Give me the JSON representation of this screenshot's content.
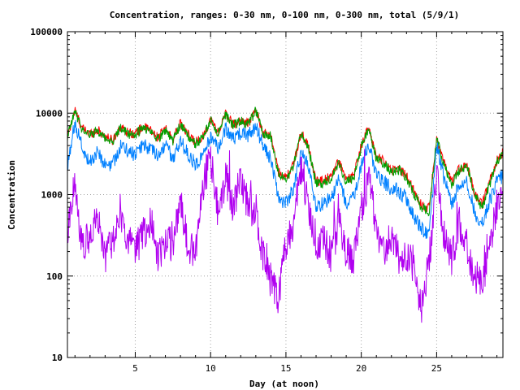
{
  "chart_data": {
    "type": "line",
    "title": "Concentration, ranges: 0-30 nm, 0-100 nm, 0-300 nm, total (5/9/1)",
    "xlabel": "Day (at noon)",
    "ylabel": "Concentration",
    "xlim": [
      0.5,
      29.4
    ],
    "ylim": [
      10,
      100000
    ],
    "yscale": "log",
    "grid": true,
    "legend": "none",
    "x_ticks": [
      {
        "value": 5,
        "label": "5"
      },
      {
        "value": 10,
        "label": "10"
      },
      {
        "value": 15,
        "label": "15"
      },
      {
        "value": 20,
        "label": "20"
      },
      {
        "value": 25,
        "label": "25"
      }
    ],
    "y_ticks": [
      {
        "value": 10,
        "label": "10"
      },
      {
        "value": 100,
        "label": "100"
      },
      {
        "value": 1000,
        "label": "1000"
      },
      {
        "value": 10000,
        "label": "10000"
      },
      {
        "value": 100000,
        "label": "100000"
      }
    ],
    "x": [
      0.5,
      1.0,
      1.5,
      2.0,
      2.5,
      3.0,
      3.5,
      4.0,
      4.5,
      5.0,
      5.5,
      6.0,
      6.5,
      7.0,
      7.5,
      8.0,
      8.5,
      9.0,
      9.5,
      10.0,
      10.5,
      11.0,
      11.5,
      12.0,
      12.5,
      13.0,
      13.5,
      14.0,
      14.5,
      15.0,
      15.5,
      16.0,
      16.5,
      17.0,
      17.5,
      18.0,
      18.5,
      19.0,
      19.5,
      20.0,
      20.5,
      21.0,
      21.5,
      22.0,
      22.5,
      23.0,
      23.5,
      24.0,
      24.5,
      25.0,
      25.5,
      26.0,
      26.5,
      27.0,
      27.5,
      28.0,
      28.5,
      29.0,
      29.4
    ],
    "series": [
      {
        "color": "#ff0000",
        "values": [
          5200,
          10800,
          6400,
          5600,
          6200,
          5200,
          4600,
          6800,
          5800,
          5600,
          6800,
          6200,
          5000,
          6400,
          4800,
          7400,
          5400,
          4400,
          5200,
          8400,
          5800,
          9800,
          7200,
          8200,
          7400,
          11000,
          5600,
          5400,
          1900,
          1600,
          2300,
          5800,
          3900,
          1450,
          1500,
          1700,
          2600,
          1500,
          1700,
          4000,
          6800,
          2900,
          2600,
          2000,
          2100,
          1700,
          1100,
          740,
          680,
          4900,
          2400,
          1400,
          2100,
          2400,
          1050,
          750,
          1400,
          2600,
          3300
        ]
      },
      {
        "color": "#00a000",
        "values": [
          5000,
          10500,
          6200,
          5400,
          6000,
          5000,
          4400,
          6600,
          5600,
          5400,
          6600,
          6000,
          4800,
          6200,
          4600,
          7200,
          5200,
          4200,
          5000,
          8200,
          5600,
          9600,
          7000,
          8000,
          7200,
          10800,
          5400,
          5200,
          1800,
          1500,
          2200,
          5600,
          3700,
          1350,
          1400,
          1600,
          2500,
          1400,
          1600,
          3800,
          6600,
          2700,
          2400,
          1900,
          2000,
          1600,
          1000,
          690,
          620,
          4800,
          2300,
          1300,
          2000,
          2300,
          980,
          690,
          1300,
          2500,
          3200
        ]
      },
      {
        "color": "#0080ff",
        "values": [
          2100,
          7800,
          3600,
          2500,
          3400,
          2300,
          2300,
          4000,
          3400,
          3100,
          4100,
          3600,
          2900,
          4100,
          2700,
          4600,
          3100,
          2400,
          3000,
          5200,
          3600,
          6400,
          4700,
          5800,
          5300,
          6900,
          3900,
          2700,
          900,
          780,
          1200,
          3300,
          2200,
          720,
          780,
          900,
          1500,
          800,
          900,
          2400,
          4100,
          1700,
          1400,
          1200,
          1100,
          880,
          530,
          380,
          330,
          4100,
          1600,
          750,
          1300,
          1500,
          620,
          440,
          800,
          1500,
          1700
        ]
      },
      {
        "color": "#b000f0",
        "values": [
          380,
          1400,
          200,
          330,
          550,
          180,
          260,
          620,
          300,
          210,
          310,
          500,
          180,
          250,
          250,
          900,
          230,
          210,
          1200,
          2900,
          600,
          1600,
          700,
          1600,
          700,
          650,
          170,
          110,
          48,
          260,
          460,
          1900,
          800,
          180,
          300,
          170,
          450,
          190,
          160,
          640,
          1600,
          400,
          210,
          300,
          170,
          170,
          130,
          40,
          150,
          1700,
          300,
          170,
          430,
          240,
          100,
          85,
          190,
          800,
          1200
        ]
      }
    ]
  }
}
